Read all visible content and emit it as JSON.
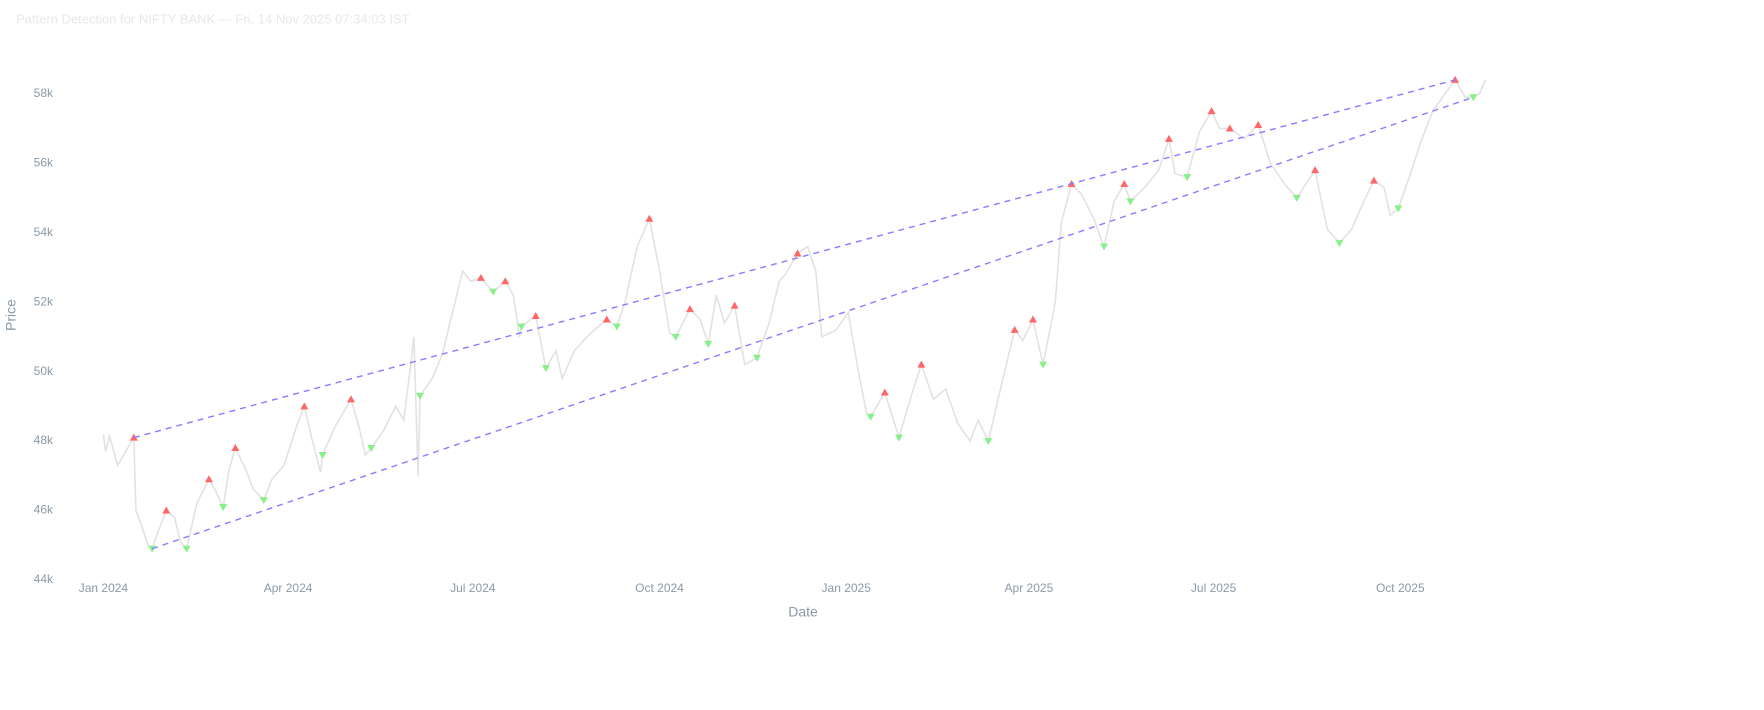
{
  "chart_data": {
    "type": "line",
    "title": "Pattern Detection for NIFTY BANK — Fri, 14 Nov 2025 07:34:03 IST",
    "x_label": "Date",
    "y_label": "Price",
    "xlim": [
      "2023-12-18",
      "2025-11-27"
    ],
    "xticks": [
      {
        "value": "2024-01-01",
        "label": "Jan 2024"
      },
      {
        "value": "2024-04-01",
        "label": "Apr 2024"
      },
      {
        "value": "2024-07-01",
        "label": "Jul 2024"
      },
      {
        "value": "2024-10-01",
        "label": "Oct 2024"
      },
      {
        "value": "2025-01-01",
        "label": "Jan 2025"
      },
      {
        "value": "2025-04-01",
        "label": "Apr 2025"
      },
      {
        "value": "2025-07-01",
        "label": "Jul 2025"
      },
      {
        "value": "2025-10-01",
        "label": "Oct 2025"
      }
    ],
    "ylim": [
      44000,
      59000
    ],
    "yticks": [
      {
        "value": 44000,
        "label": "44k"
      },
      {
        "value": 46000,
        "label": "46k"
      },
      {
        "value": 48000,
        "label": "48k"
      },
      {
        "value": 50000,
        "label": "50k"
      },
      {
        "value": 52000,
        "label": "52k"
      },
      {
        "value": 54000,
        "label": "54k"
      },
      {
        "value": 56000,
        "label": "56k"
      },
      {
        "value": 58000,
        "label": "58k"
      }
    ],
    "series": [
      {
        "mode": "line",
        "color": "#e2e2e2",
        "x": [
          "2024-01-01",
          "2024-01-02",
          "2024-01-04",
          "2024-01-08",
          "2024-01-12",
          "2024-01-16",
          "2024-01-17",
          "2024-01-19",
          "2024-01-23",
          "2024-01-25",
          "2024-01-28",
          "2024-02-01",
          "2024-02-05",
          "2024-02-08",
          "2024-02-11",
          "2024-02-16",
          "2024-02-22",
          "2024-02-25",
          "2024-02-29",
          "2024-03-03",
          "2024-03-06",
          "2024-03-11",
          "2024-03-15",
          "2024-03-20",
          "2024-03-24",
          "2024-03-30",
          "2024-04-05",
          "2024-04-09",
          "2024-04-13",
          "2024-04-17",
          "2024-04-18",
          "2024-04-24",
          "2024-05-02",
          "2024-05-06",
          "2024-05-09",
          "2024-05-12",
          "2024-05-18",
          "2024-05-24",
          "2024-05-28",
          "2024-05-31",
          "2024-06-02",
          "2024-06-04",
          "2024-06-05",
          "2024-06-11",
          "2024-06-16",
          "2024-06-21",
          "2024-06-26",
          "2024-06-30",
          "2024-07-05",
          "2024-07-11",
          "2024-07-17",
          "2024-07-21",
          "2024-07-24",
          "2024-07-25",
          "2024-08-01",
          "2024-08-06",
          "2024-08-11",
          "2024-08-14",
          "2024-08-20",
          "2024-08-28",
          "2024-09-05",
          "2024-09-10",
          "2024-09-14",
          "2024-09-20",
          "2024-09-26",
          "2024-10-01",
          "2024-10-06",
          "2024-10-09",
          "2024-10-16",
          "2024-10-21",
          "2024-10-25",
          "2024-10-29",
          "2024-11-02",
          "2024-11-07",
          "2024-11-12",
          "2024-11-18",
          "2024-11-24",
          "2024-11-29",
          "2024-12-02",
          "2024-12-08",
          "2024-12-13",
          "2024-12-17",
          "2024-12-20",
          "2024-12-27",
          "2025-01-02",
          "2025-01-07",
          "2025-01-11",
          "2025-01-13",
          "2025-01-20",
          "2025-01-27",
          "2025-02-02",
          "2025-02-07",
          "2025-02-13",
          "2025-02-19",
          "2025-02-25",
          "2025-03-03",
          "2025-03-07",
          "2025-03-12",
          "2025-03-18",
          "2025-03-25",
          "2025-03-29",
          "2025-04-03",
          "2025-04-08",
          "2025-04-14",
          "2025-04-17",
          "2025-04-22",
          "2025-04-27",
          "2025-05-03",
          "2025-05-08",
          "2025-05-13",
          "2025-05-18",
          "2025-05-21",
          "2025-05-28",
          "2025-06-04",
          "2025-06-09",
          "2025-06-12",
          "2025-06-18",
          "2025-06-24",
          "2025-06-30",
          "2025-07-04",
          "2025-07-09",
          "2025-07-16",
          "2025-07-23",
          "2025-07-29",
          "2025-08-05",
          "2025-08-11",
          "2025-08-20",
          "2025-08-26",
          "2025-09-01",
          "2025-09-07",
          "2025-09-13",
          "2025-09-18",
          "2025-09-23",
          "2025-09-26",
          "2025-09-30",
          "2025-10-06",
          "2025-10-11",
          "2025-10-17",
          "2025-10-23",
          "2025-10-28",
          "2025-11-02",
          "2025-11-06",
          "2025-11-09",
          "2025-11-12"
        ],
        "values": [
          48200,
          47700,
          48150,
          47300,
          47700,
          48100,
          46000,
          45700,
          45000,
          44900,
          45400,
          46000,
          45800,
          45100,
          44900,
          46200,
          46900,
          46600,
          46100,
          47200,
          47800,
          47200,
          46600,
          46300,
          46900,
          47300,
          48400,
          49000,
          48000,
          47100,
          47600,
          48400,
          49200,
          48400,
          47600,
          47800,
          48300,
          49000,
          48600,
          50000,
          51000,
          47000,
          49300,
          49800,
          50500,
          51700,
          52900,
          52600,
          52700,
          52300,
          52600,
          52200,
          51000,
          51300,
          51600,
          50100,
          50600,
          49800,
          50600,
          51100,
          51500,
          51300,
          52000,
          53600,
          54400,
          52900,
          51100,
          51000,
          51800,
          51500,
          50800,
          52200,
          51400,
          51900,
          50200,
          50400,
          51400,
          52600,
          52800,
          53400,
          53600,
          52900,
          51000,
          51200,
          51700,
          50000,
          48800,
          48700,
          49400,
          48100,
          49300,
          50200,
          49200,
          49500,
          48500,
          48000,
          48600,
          48000,
          49500,
          51200,
          50900,
          51500,
          50200,
          52000,
          54300,
          55400,
          55100,
          54400,
          53600,
          54900,
          55400,
          54900,
          55300,
          55800,
          56700,
          55700,
          55600,
          56900,
          57500,
          57000,
          57000,
          56700,
          57100,
          56000,
          55400,
          55000,
          55800,
          54100,
          53700,
          54100,
          54900,
          55500,
          55300,
          54500,
          54700,
          55700,
          56600,
          57500,
          58000,
          58400,
          57900,
          57900,
          58000,
          58400
        ]
      },
      {
        "mode": "triangle-up",
        "color": "#ff6666",
        "x": [
          "2024-01-16",
          "2024-02-01",
          "2024-02-22",
          "2024-03-06",
          "2024-04-09",
          "2024-05-02",
          "2024-07-05",
          "2024-07-17",
          "2024-08-01",
          "2024-09-05",
          "2024-09-26",
          "2024-10-16",
          "2024-11-07",
          "2024-12-08",
          "2025-01-20",
          "2025-02-07",
          "2025-03-25",
          "2025-04-03",
          "2025-04-22",
          "2025-05-18",
          "2025-06-09",
          "2025-06-30",
          "2025-07-09",
          "2025-07-23",
          "2025-08-20",
          "2025-09-18",
          "2025-10-28"
        ],
        "values": [
          48100,
          46000,
          46900,
          47800,
          49000,
          49200,
          52700,
          52600,
          51600,
          51500,
          54400,
          51800,
          51900,
          53400,
          49400,
          50200,
          51200,
          51500,
          55400,
          55400,
          56700,
          57500,
          57000,
          57100,
          55800,
          55500,
          58400
        ]
      },
      {
        "mode": "triangle-down",
        "color": "#88f088",
        "x": [
          "2024-01-25",
          "2024-02-11",
          "2024-02-29",
          "2024-03-20",
          "2024-04-18",
          "2024-05-12",
          "2024-06-05",
          "2024-07-11",
          "2024-07-25",
          "2024-08-06",
          "2024-09-10",
          "2024-10-09",
          "2024-10-25",
          "2024-11-18",
          "2025-01-13",
          "2025-01-27",
          "2025-03-12",
          "2025-04-08",
          "2025-05-08",
          "2025-05-21",
          "2025-06-18",
          "2025-08-11",
          "2025-09-01",
          "2025-09-30",
          "2025-11-06"
        ],
        "values": [
          44900,
          44900,
          46100,
          46300,
          47600,
          47800,
          49300,
          52300,
          51300,
          50100,
          51300,
          51000,
          50800,
          50400,
          48700,
          48100,
          48000,
          50200,
          53600,
          54900,
          55600,
          55000,
          53700,
          54700,
          57900
        ]
      },
      {
        "mode": "dash",
        "color": "#8a7dff",
        "x": [
          "2024-01-16",
          "2025-10-28"
        ],
        "values": [
          48100,
          58400
        ]
      },
      {
        "mode": "dash",
        "color": "#8a7dff",
        "x": [
          "2024-01-25",
          "2025-11-06"
        ],
        "values": [
          44900,
          57900
        ]
      }
    ]
  }
}
